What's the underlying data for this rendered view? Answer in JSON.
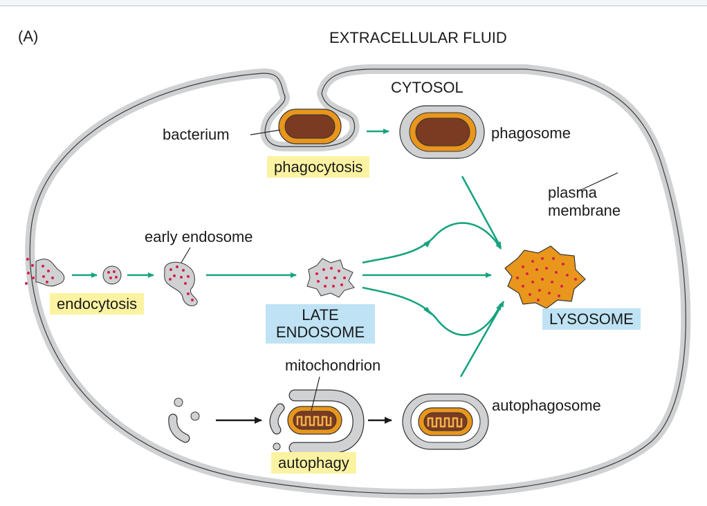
{
  "figure_label": "(A)",
  "labels": {
    "extracellular_fluid": "EXTRACELLULAR FLUID",
    "cytosol": "CYTOSOL",
    "bacterium": "bacterium",
    "phagosome": "phagosome",
    "phagocytosis": "phagocytosis",
    "plasma_membrane_line1": "plasma",
    "plasma_membrane_line2": "membrane",
    "early_endosome": "early endosome",
    "endocytosis": "endocytosis",
    "late_endosome_line1": "LATE",
    "late_endosome_line2": "ENDOSOME",
    "lysosome": "LYSOSOME",
    "mitochondrion": "mitochondrion",
    "autophagosome": "autophagosome",
    "autophagy": "autophagy"
  },
  "colors": {
    "membrane": "#cfd1d2",
    "membrane_edge": "#3a3a3a",
    "cargo_orange": "#e9961c",
    "bacterium_brown": "#7a3b22",
    "cargo_dots": "#d81f4a",
    "green_arrow": "#16a37f",
    "black_arrow": "#1a1a1a",
    "highlight_yellow": "#fbf3a2",
    "highlight_blue": "#bfe3f5"
  }
}
